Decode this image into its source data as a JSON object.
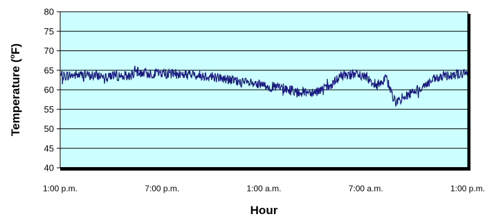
{
  "chart_data": {
    "type": "line",
    "title": "",
    "xlabel": "Hour",
    "ylabel": "Temperature (°F)",
    "ylabel_parts": {
      "before": "Temperature (",
      "superscript": "o",
      "after": "F)"
    },
    "ylim": [
      40,
      80
    ],
    "yticks": [
      40,
      45,
      50,
      55,
      60,
      65,
      70,
      75,
      80
    ],
    "xlim": [
      0,
      24
    ],
    "xticks": [
      {
        "x": 0,
        "label": "1:00 p.m."
      },
      {
        "x": 6,
        "label": "7:00 p.m."
      },
      {
        "x": 12,
        "label": "1:00 a.m."
      },
      {
        "x": 18,
        "label": "7:00 a.m."
      },
      {
        "x": 24,
        "label": "1:00 p.m."
      }
    ],
    "x_unit": "hours after 1:00 p.m.",
    "grid": true,
    "plot_background": "#ccffff",
    "line_color": "#1a1a80",
    "series": [
      {
        "x": [
          0,
          1,
          2,
          3,
          4,
          4.5,
          5,
          6,
          7,
          8,
          9,
          10,
          11,
          12,
          13,
          14,
          15,
          16,
          16.5,
          17,
          18,
          18.5,
          19,
          19.2,
          19.7,
          20,
          21,
          22,
          23,
          24
        ],
        "values": [
          63.5,
          63.8,
          63.6,
          63.7,
          63.5,
          64.5,
          64.3,
          64.2,
          64.0,
          63.8,
          63.4,
          62.5,
          61.7,
          61.0,
          60.5,
          59.5,
          59.5,
          61.0,
          63.5,
          64.0,
          63.5,
          61.5,
          62.0,
          63.0,
          57.0,
          57.5,
          60.0,
          62.5,
          64.0,
          64.0
        ]
      }
    ]
  }
}
